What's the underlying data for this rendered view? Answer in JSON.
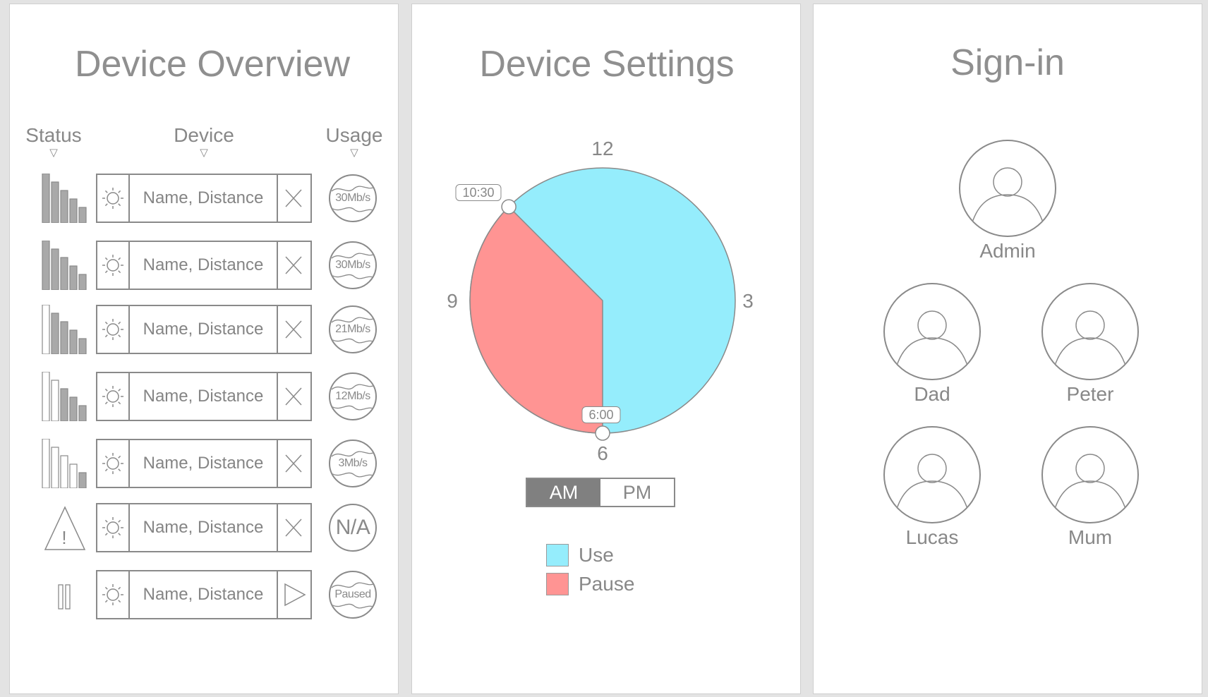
{
  "overview": {
    "title": "Device Overview",
    "columns": {
      "status": "Status",
      "device": "Device",
      "usage": "Usage"
    },
    "rows": [
      {
        "status": "signal-5",
        "device": "Name, Distance",
        "action": "remove",
        "usage": "30Mb/s"
      },
      {
        "status": "signal-5",
        "device": "Name, Distance",
        "action": "remove",
        "usage": "30Mb/s"
      },
      {
        "status": "signal-4",
        "device": "Name, Distance",
        "action": "remove",
        "usage": "21Mb/s"
      },
      {
        "status": "signal-3",
        "device": "Name, Distance",
        "action": "remove",
        "usage": "12Mb/s"
      },
      {
        "status": "signal-1",
        "device": "Name, Distance",
        "action": "remove",
        "usage": "3Mb/s"
      },
      {
        "status": "warning",
        "device": "Name, Distance",
        "action": "remove",
        "usage": "N/A"
      },
      {
        "status": "paused",
        "device": "Name, Distance",
        "action": "play",
        "usage": "Paused"
      }
    ]
  },
  "settings": {
    "title": "Device Settings",
    "clock": {
      "n12": "12",
      "n3": "3",
      "n6": "6",
      "n9": "9"
    },
    "start_time": "10:30",
    "end_time": "6:00",
    "period": {
      "am": "AM",
      "pm": "PM",
      "selected": "AM"
    },
    "legend": {
      "use": "Use",
      "pause": "Pause"
    },
    "colors": {
      "use": "#95edfc",
      "pause": "#ff9493"
    }
  },
  "signin": {
    "title": "Sign-in",
    "users": [
      "Admin",
      "Dad",
      "Peter",
      "Lucas",
      "Mum"
    ]
  }
}
